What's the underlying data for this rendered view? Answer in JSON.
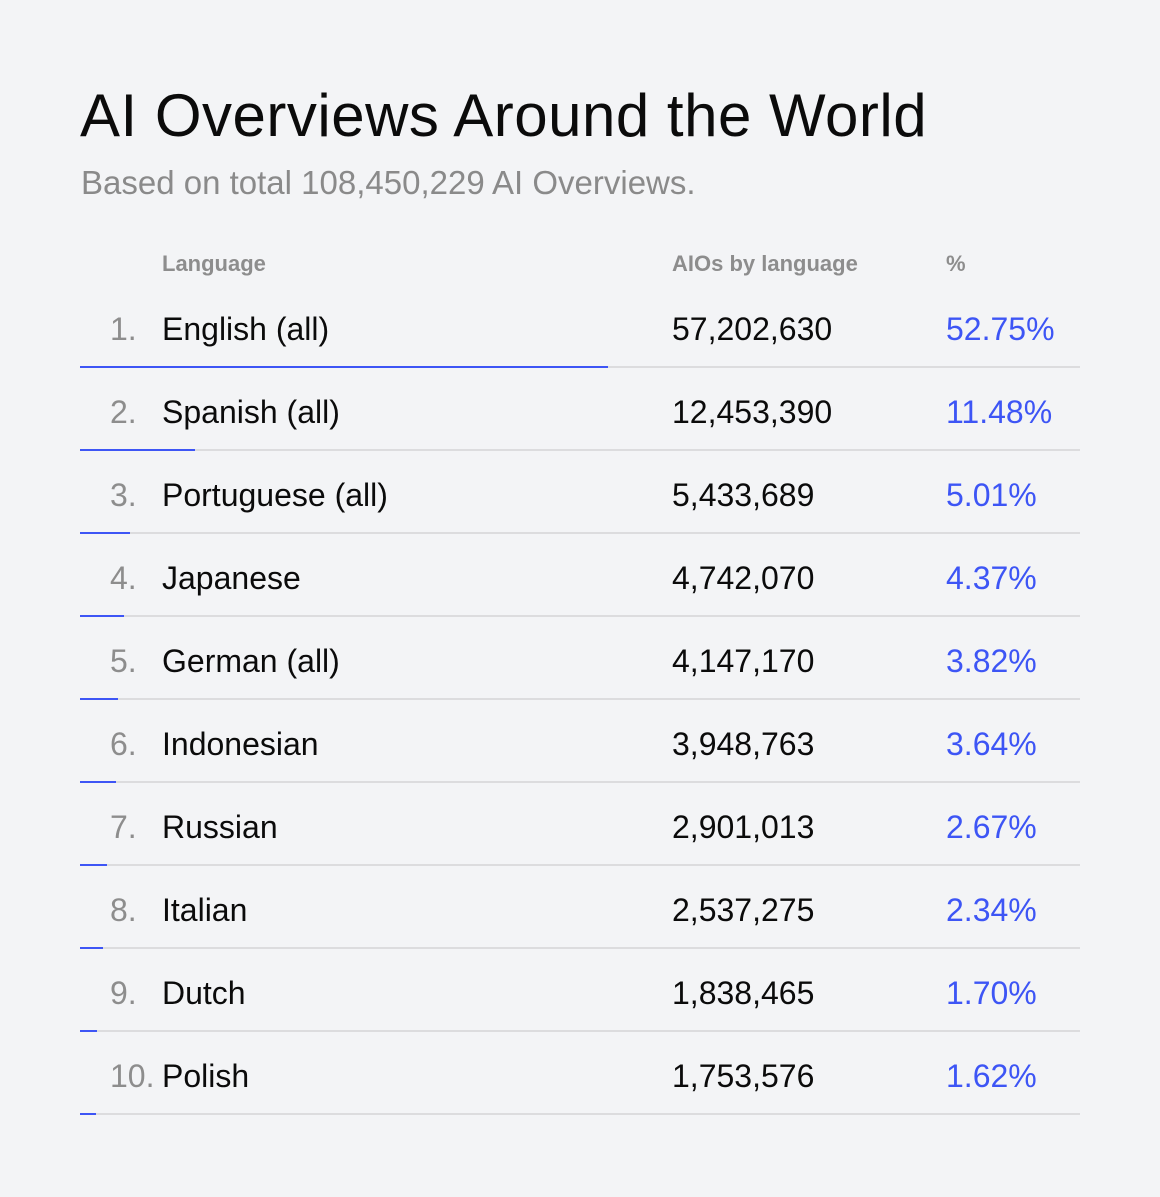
{
  "title": "AI Overviews Around the World",
  "subtitle": "Based on total 108,450,229 AI Overviews.",
  "colors": {
    "accent": "#3d55f5",
    "background": "#f3f4f6",
    "divider": "#dcdcde"
  },
  "chart_data": {
    "type": "table",
    "columns": [
      "Language",
      "AIOs by language",
      "%"
    ],
    "rows": [
      {
        "rank": "1.",
        "language": "English (all)",
        "count": "57,202,630",
        "pct": "52.75%",
        "value": 52.75
      },
      {
        "rank": "2.",
        "language": "Spanish (all)",
        "count": "12,453,390",
        "pct": "11.48%",
        "value": 11.48
      },
      {
        "rank": "3.",
        "language": "Portuguese (all)",
        "count": "5,433,689",
        "pct": "5.01%",
        "value": 5.01
      },
      {
        "rank": "4.",
        "language": "Japanese",
        "count": "4,742,070",
        "pct": "4.37%",
        "value": 4.37
      },
      {
        "rank": "5.",
        "language": "German (all)",
        "count": "4,147,170",
        "pct": "3.82%",
        "value": 3.82
      },
      {
        "rank": "6.",
        "language": "Indonesian",
        "count": "3,948,763",
        "pct": "3.64%",
        "value": 3.64
      },
      {
        "rank": "7.",
        "language": "Russian",
        "count": "2,901,013",
        "pct": "2.67%",
        "value": 2.67
      },
      {
        "rank": "8.",
        "language": "Italian",
        "count": "2,537,275",
        "pct": "2.34%",
        "value": 2.34
      },
      {
        "rank": "9.",
        "language": "Dutch",
        "count": "1,838,465",
        "pct": "1.70%",
        "value": 1.7
      },
      {
        "rank": "10.",
        "language": "Polish",
        "count": "1,753,576",
        "pct": "1.62%",
        "value": 1.62
      }
    ],
    "bar_range": [
      0,
      100
    ]
  }
}
